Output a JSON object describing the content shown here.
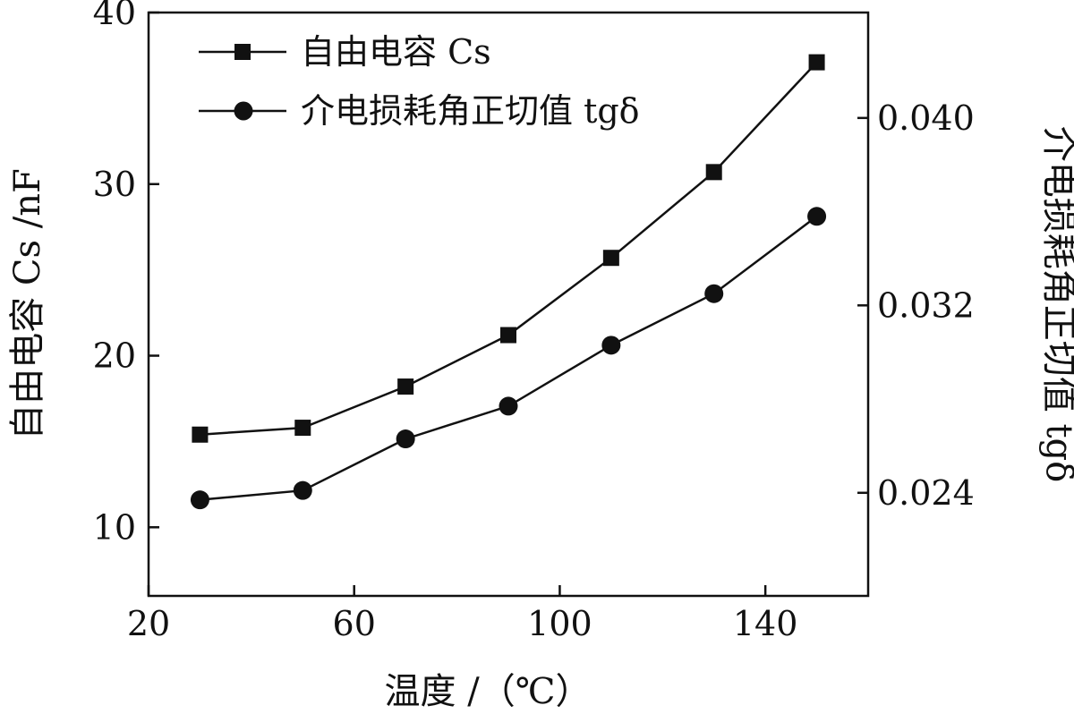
{
  "chart_data": {
    "type": "line",
    "x_axis": {
      "label": "温度 /（℃）",
      "range": [
        20,
        160
      ],
      "ticks": [
        20,
        60,
        100,
        140
      ],
      "tick_labels": [
        "20",
        "60",
        "100",
        "140"
      ]
    },
    "y_axis_left": {
      "label": "自由电容 Cs /nF",
      "range": [
        6,
        40
      ],
      "ticks": [
        10,
        20,
        30,
        40
      ],
      "tick_labels": [
        "10",
        "20",
        "30",
        "40"
      ]
    },
    "y_axis_right": {
      "label": "介电损耗角正切值 tgδ",
      "range": [
        0.0196,
        0.0445
      ],
      "ticks": [
        0.024,
        0.032,
        0.04
      ],
      "tick_labels": [
        "0.024",
        "0.032",
        "0.040"
      ]
    },
    "grid": false,
    "legend_position": "top-left",
    "series": [
      {
        "name": "自由电容 Cs",
        "marker": "square",
        "axis": "left",
        "x": [
          30,
          50,
          70,
          90,
          110,
          130,
          150
        ],
        "values": [
          15.4,
          15.8,
          18.2,
          21.2,
          25.7,
          30.7,
          37.1
        ]
      },
      {
        "name": "介电损耗角正切值 tgδ",
        "marker": "circle",
        "axis": "right",
        "x": [
          30,
          50,
          70,
          90,
          110,
          130,
          150
        ],
        "values": [
          0.0237,
          0.0241,
          0.0263,
          0.0277,
          0.0303,
          0.0325,
          0.0358
        ]
      }
    ]
  }
}
